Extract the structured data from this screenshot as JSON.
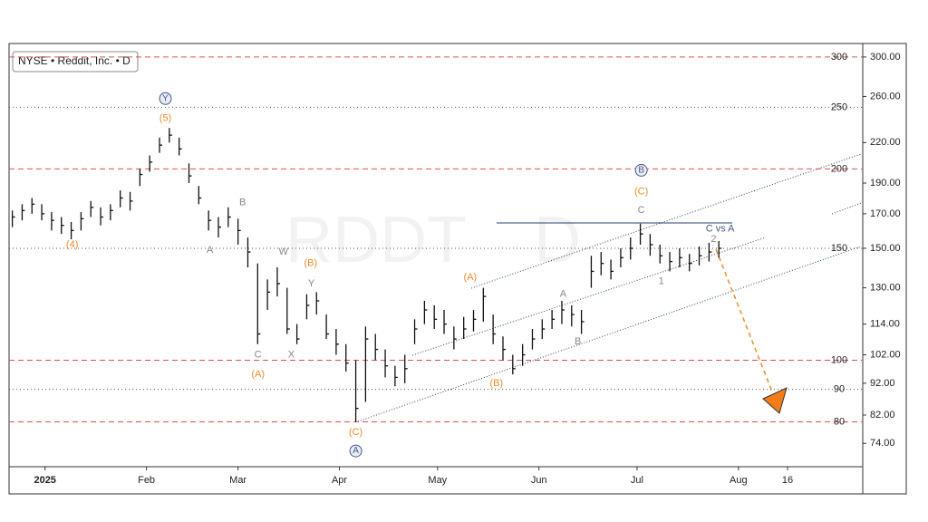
{
  "chart_data": {
    "type": "ohlc",
    "title": "NYSE • Reddit, Inc. • D",
    "watermark": [
      "RDDT",
      "D"
    ],
    "log_scale": true,
    "xlim": [
      -11,
      250
    ],
    "xticks": [
      {
        "value": 0,
        "label": "2025"
      },
      {
        "value": 31,
        "label": "Feb"
      },
      {
        "value": 59,
        "label": "Mar"
      },
      {
        "value": 90,
        "label": "Apr"
      },
      {
        "value": 120,
        "label": "May"
      },
      {
        "value": 151,
        "label": "Jun"
      },
      {
        "value": 181,
        "label": "Jul"
      },
      {
        "value": 212,
        "label": "Aug"
      },
      {
        "value": 227,
        "label": "16"
      }
    ],
    "ylim": [
      68,
      315
    ],
    "yticks": [
      {
        "value": 300,
        "label": "300.00"
      },
      {
        "value": 260,
        "label": "260.00"
      },
      {
        "value": 220,
        "label": "220.00"
      },
      {
        "value": 190,
        "label": "190.00"
      },
      {
        "value": 170,
        "label": "170.00"
      },
      {
        "value": 150,
        "label": "150.00"
      },
      {
        "value": 130,
        "label": "130.00"
      },
      {
        "value": 114,
        "label": "114.00"
      },
      {
        "value": 102,
        "label": "102.00"
      },
      {
        "value": 92,
        "label": "92.00"
      },
      {
        "value": 82,
        "label": "82.00"
      },
      {
        "value": 74,
        "label": "74.00"
      }
    ],
    "levels": [
      {
        "value": 300,
        "color": "#d9534f",
        "dash": "6 4"
      },
      {
        "value": 250,
        "color": "#555555",
        "dash": "1 3"
      },
      {
        "value": 200,
        "color": "#d9534f",
        "dash": "6 4"
      },
      {
        "value": 150,
        "color": "#555555",
        "dash": "1 3"
      },
      {
        "value": 100,
        "color": "#d9534f",
        "dash": "6 4"
      },
      {
        "value": 90,
        "color": "#555555",
        "dash": "1 3"
      },
      {
        "value": 80,
        "color": "#d9534f",
        "dash": "6 4"
      }
    ],
    "color": "#111111",
    "x": [
      -10,
      -7,
      -4,
      -1,
      2,
      5,
      8,
      11,
      14,
      17,
      20,
      23,
      26,
      29,
      32,
      35,
      38,
      41,
      44,
      47,
      50,
      53,
      56,
      59,
      62,
      65,
      68,
      71,
      74,
      77,
      80,
      83,
      86,
      89,
      92,
      95,
      98,
      101,
      104,
      107,
      110,
      113,
      116,
      119,
      122,
      125,
      128,
      131,
      134,
      137,
      140,
      143,
      146,
      149,
      152,
      155,
      158,
      161,
      164,
      167,
      170,
      173,
      176,
      179,
      182,
      185,
      188,
      191,
      194,
      197,
      200,
      203,
      206
    ],
    "high": [
      172,
      176,
      180,
      176,
      171,
      168,
      165,
      171,
      178,
      174,
      176,
      185,
      184,
      200,
      210,
      224,
      232,
      224,
      204,
      188,
      172,
      168,
      174,
      167,
      156,
      142,
      134,
      140,
      130,
      114,
      127,
      128,
      118,
      112,
      106,
      100,
      113,
      110,
      104,
      98,
      102,
      116,
      124,
      122,
      120,
      113,
      117,
      120,
      130,
      118,
      109,
      102,
      106,
      112,
      116,
      120,
      124,
      122,
      120,
      146,
      148,
      144,
      150,
      156,
      164,
      158,
      152,
      148,
      150,
      147,
      151,
      153,
      154
    ],
    "low": [
      162,
      166,
      170,
      166,
      160,
      158,
      155,
      160,
      168,
      163,
      166,
      174,
      172,
      188,
      198,
      212,
      220,
      210,
      190,
      176,
      160,
      156,
      162,
      152,
      140,
      106,
      120,
      126,
      110,
      106,
      116,
      118,
      108,
      102,
      96,
      80,
      86,
      100,
      94,
      91,
      92,
      106,
      114,
      112,
      110,
      104,
      108,
      111,
      115,
      106,
      100,
      95,
      98,
      104,
      108,
      112,
      114,
      113,
      110,
      130,
      136,
      134,
      140,
      144,
      152,
      146,
      142,
      138,
      140,
      138,
      141,
      143,
      145
    ],
    "close": [
      168,
      172,
      176,
      170,
      166,
      163,
      160,
      167,
      174,
      168,
      172,
      180,
      178,
      196,
      205,
      218,
      226,
      215,
      195,
      180,
      166,
      162,
      168,
      160,
      148,
      110,
      128,
      132,
      112,
      108,
      122,
      124,
      110,
      106,
      99,
      84,
      108,
      104,
      98,
      94,
      97,
      112,
      120,
      116,
      114,
      108,
      112,
      116,
      126,
      110,
      104,
      97,
      102,
      108,
      112,
      116,
      120,
      118,
      115,
      138,
      142,
      138,
      145,
      150,
      158,
      152,
      146,
      143,
      145,
      142,
      146,
      148,
      150
    ],
    "annotations": [
      {
        "text": "(4)",
        "x": 8.3,
        "y": 152,
        "color": "#f28c28"
      },
      {
        "text": "(5)",
        "x": 36.8,
        "y": 240,
        "color": "#f28c28"
      },
      {
        "text": "Y",
        "x": 36.8,
        "y": 258,
        "color": "#4a5a8a",
        "circled": true
      },
      {
        "text": "A",
        "x": 50.4,
        "y": 149,
        "color": "#888888"
      },
      {
        "text": "B",
        "x": 60.4,
        "y": 177,
        "color": "#888888"
      },
      {
        "text": "W",
        "x": 72.9,
        "y": 148,
        "color": "#888888"
      },
      {
        "text": "Y",
        "x": 81.4,
        "y": 132,
        "color": "#888888"
      },
      {
        "text": "(B)",
        "x": 81.2,
        "y": 142,
        "color": "#f28c28"
      },
      {
        "text": "C",
        "x": 65.1,
        "y": 102,
        "color": "#888888"
      },
      {
        "text": "X",
        "x": 75.3,
        "y": 102,
        "color": "#888888"
      },
      {
        "text": "(A)",
        "x": 65.1,
        "y": 95,
        "color": "#f28c28"
      },
      {
        "text": "(C)",
        "x": 95,
        "y": 77,
        "color": "#f28c28"
      },
      {
        "text": "A",
        "x": 95,
        "y": 72,
        "color": "#4a5a8a",
        "circled": true
      },
      {
        "text": "(A)",
        "x": 130,
        "y": 135,
        "color": "#f28c28"
      },
      {
        "text": "(B)",
        "x": 138,
        "y": 92,
        "color": "#f28c28"
      },
      {
        "text": "A",
        "x": 158.4,
        "y": 127,
        "color": "#888888"
      },
      {
        "text": "B",
        "x": 162.9,
        "y": 107,
        "color": "#888888"
      },
      {
        "text": "C",
        "x": 182.3,
        "y": 172,
        "color": "#888888"
      },
      {
        "text": "(C)",
        "x": 182.3,
        "y": 184,
        "color": "#f28c28"
      },
      {
        "text": "B",
        "x": 182.3,
        "y": 199,
        "color": "#4a5a8a",
        "circled": true
      },
      {
        "text": "1",
        "x": 188.4,
        "y": 133,
        "color": "#888888"
      },
      {
        "text": "2",
        "x": 204.4,
        "y": 155,
        "color": "#888888"
      },
      {
        "text": "C vs A",
        "x": 206.4,
        "y": 161,
        "color": "#4a5a8a"
      }
    ]
  }
}
